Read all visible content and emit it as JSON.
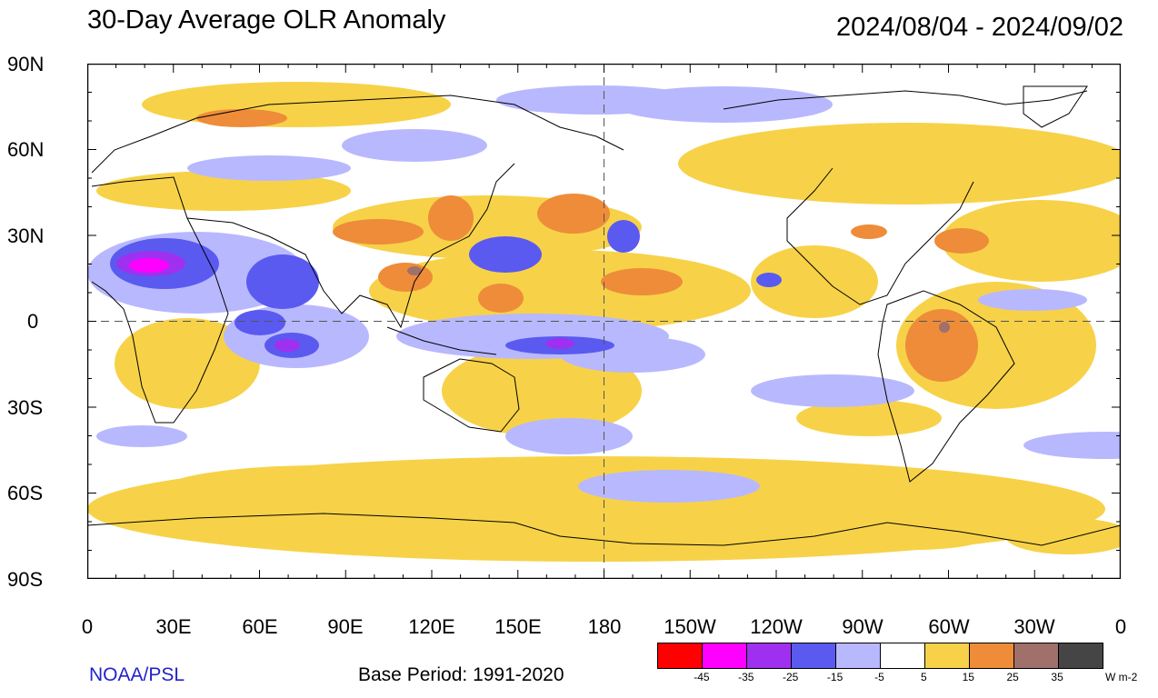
{
  "title": "30-Day Average OLR Anomaly",
  "date_range": "2024/08/04 - 2024/09/02",
  "credit": "NOAA/PSL",
  "base_period": "Base Period: 1991-2020",
  "units": "W m-2",
  "lat_labels": [
    "90N",
    "60N",
    "30N",
    "0",
    "30S",
    "60S",
    "90S"
  ],
  "lon_labels": [
    "0",
    "30E",
    "60E",
    "90E",
    "120E",
    "150E",
    "180",
    "150W",
    "120W",
    "90W",
    "60W",
    "30W",
    "0"
  ],
  "colorbar": {
    "colors": [
      "#ff0000",
      "#ff00ff",
      "#a030f0",
      "#5a5af0",
      "#b8b8ff",
      "#ffffff",
      "#f7d248",
      "#ee8c3a",
      "#a0706a",
      "#454545"
    ],
    "labels": [
      "-45",
      "-35",
      "-25",
      "-15",
      "-5",
      "5",
      "15",
      "25",
      "35"
    ]
  },
  "map": {
    "projection": "equirectangular",
    "lon_range": [
      0,
      360
    ],
    "lat_range": [
      -90,
      90
    ],
    "reference_lines": [
      "equator (dashed)",
      "180 meridian (dashed)"
    ]
  }
}
